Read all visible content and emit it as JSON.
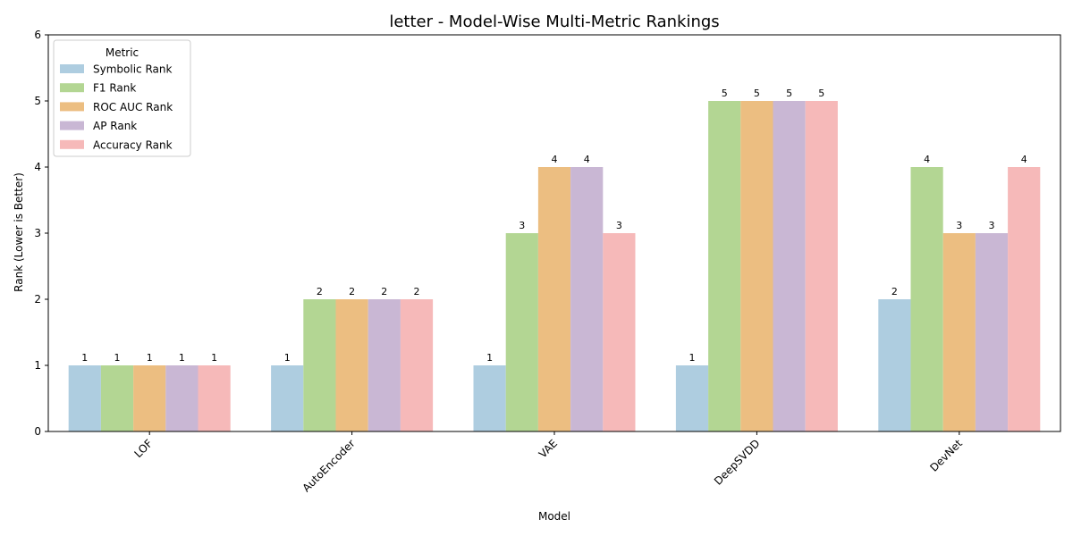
{
  "chart_data": {
    "type": "bar",
    "title": "letter - Model-Wise Multi-Metric Rankings",
    "xlabel": "Model",
    "ylabel": "Rank (Lower is Better)",
    "ylim": [
      0,
      6
    ],
    "yticks": [
      0,
      1,
      2,
      3,
      4,
      5,
      6
    ],
    "categories": [
      "LOF",
      "AutoEncoder",
      "VAE",
      "DeepSVDD",
      "DevNet"
    ],
    "series": [
      {
        "name": "Symbolic Rank",
        "color": "#aecde0",
        "values": [
          1,
          1,
          1,
          1,
          2
        ]
      },
      {
        "name": "F1 Rank",
        "color": "#b3d693",
        "values": [
          1,
          2,
          3,
          5,
          4
        ]
      },
      {
        "name": "ROC AUC Rank",
        "color": "#ecbe81",
        "values": [
          1,
          2,
          4,
          5,
          3
        ]
      },
      {
        "name": "AP Rank",
        "color": "#c9b7d4",
        "values": [
          1,
          2,
          4,
          5,
          3
        ]
      },
      {
        "name": "Accuracy Rank",
        "color": "#f6b9b9",
        "values": [
          1,
          2,
          3,
          5,
          4
        ]
      }
    ],
    "legend": {
      "title": "Metric",
      "placement": "top-left"
    },
    "grid": false
  }
}
